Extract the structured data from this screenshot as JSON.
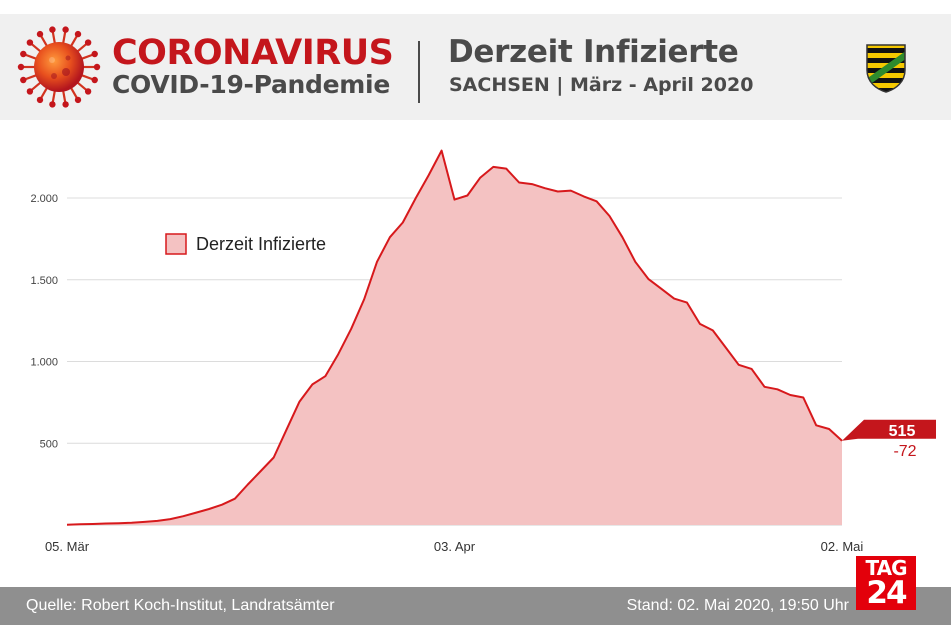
{
  "header": {
    "brand_title": "CORONAVIRUS",
    "brand_subtitle": "COVID-19-Pandemie",
    "title": "Derzeit Infizierte",
    "subtitle": "SACHSEN | März - April 2020",
    "brand_color": "#c4161c"
  },
  "footer": {
    "source": "Quelle: Robert Koch-Institut, Landratsämter",
    "stand": "Stand: 02. Mai 2020, 19:50 Uhr"
  },
  "logo": {
    "line1": "TAG",
    "line2": "24",
    "color": "#e3000b"
  },
  "chart_data": {
    "type": "area",
    "x_start": "2020-03-05",
    "x_end": "2020-05-02",
    "xticks": [
      "05. Mär",
      "03. Apr",
      "02. Mai"
    ],
    "yticks": [
      "500",
      "1.000",
      "1.500",
      "2.000"
    ],
    "ytick_values": [
      500,
      1000,
      1500,
      2000
    ],
    "ylim": [
      0,
      2350
    ],
    "grid": true,
    "legend": "top-left",
    "series": [
      {
        "name": "Derzeit Infizierte",
        "color": "#d7191c",
        "fill": "#f4c2c2",
        "values": [
          2,
          4,
          6,
          9,
          11,
          14,
          19,
          25,
          36,
          54,
          76,
          98,
          124,
          161,
          248,
          330,
          413,
          585,
          755,
          860,
          910,
          1045,
          1200,
          1380,
          1610,
          1760,
          1850,
          2000,
          2140,
          2290,
          1990,
          2015,
          2125,
          2190,
          2180,
          2095,
          2085,
          2060,
          2040,
          2045,
          2010,
          1980,
          1890,
          1760,
          1610,
          1505,
          1445,
          1385,
          1360,
          1230,
          1190,
          1085,
          980,
          955,
          845,
          830,
          795,
          780,
          610,
          587,
          515
        ]
      }
    ],
    "last_value_label": "515",
    "last_change_label": "-72"
  }
}
